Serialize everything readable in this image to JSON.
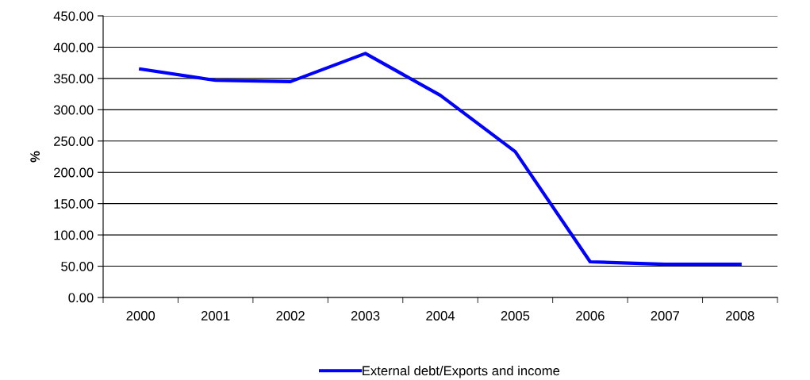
{
  "chart_data": {
    "type": "line",
    "ylabel": "%",
    "categories": [
      "2000",
      "2001",
      "2002",
      "2003",
      "2004",
      "2005",
      "2006",
      "2007",
      "2008"
    ],
    "series": [
      {
        "name": "External debt/Exports and income",
        "color": "#0000ff",
        "values": [
          365,
          347,
          345,
          390,
          323,
          233,
          57,
          53,
          53
        ]
      }
    ],
    "ylim": [
      0,
      450
    ],
    "yticks": [
      {
        "value": 0,
        "label": "0.00"
      },
      {
        "value": 50,
        "label": "50.00"
      },
      {
        "value": 100,
        "label": "100.00"
      },
      {
        "value": 150,
        "label": "150.00"
      },
      {
        "value": 200,
        "label": "200.00"
      },
      {
        "value": 250,
        "label": "250.00"
      },
      {
        "value": 300,
        "label": "300.00"
      },
      {
        "value": 350,
        "label": "350.00"
      },
      {
        "value": 400,
        "label": "400.00"
      },
      {
        "value": 450,
        "label": "450.00"
      }
    ],
    "grid": "y",
    "legend": "bottom",
    "marker": "none",
    "line_style": "solid"
  }
}
